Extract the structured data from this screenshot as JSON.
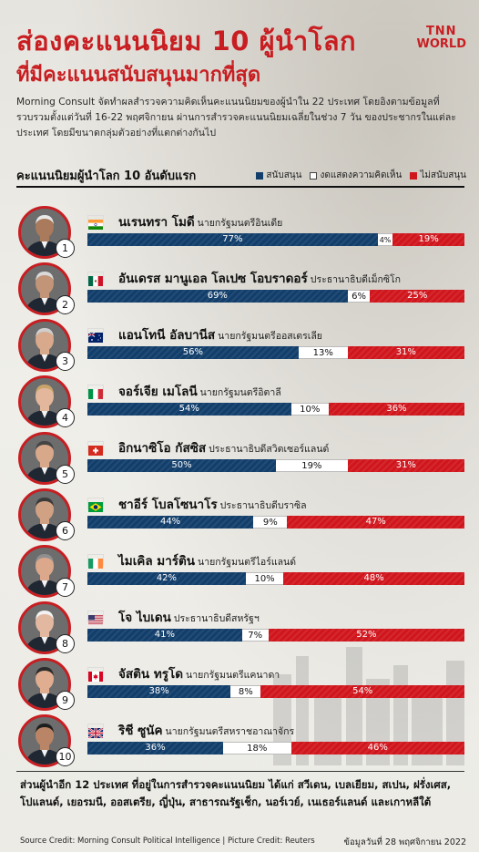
{
  "header": {
    "title_line1": "ส่องคะแนนนิยม 10 ผู้นำโลก",
    "title_line2": "ที่มีคะแนนสนับสนุนมากที่สุด",
    "logo_line1": "TNN",
    "logo_line2": "WORLD",
    "intro": "Morning Consult จัดทำผลสำรวจความคิดเห็นคะแนนนิยมของผู้นำใน 22 ประเทศ โดยอิงตามข้อมูลที่รวบรวมตั้งแต่วันที่ 16-22 พฤศจิกายน ผ่านการสำรวจคะแนนนิยมเฉลี่ยในช่วง 7 วัน ของประชากรในแต่ละประเทศ โดยมีขนาดกลุ่มตัวอย่างที่แตกต่างกันไป"
  },
  "chart_data": {
    "type": "bar",
    "orientation": "horizontal-stacked",
    "title": "คะแนนนิยมผู้นำโลก 10 อันดับแรก",
    "unit": "%",
    "legend_position": "top-right",
    "series": [
      {
        "name": "สนับสนุน",
        "color": "#123e6b",
        "values": [
          77,
          69,
          56,
          54,
          50,
          44,
          42,
          41,
          38,
          36
        ]
      },
      {
        "name": "งดแสดงความคิดเห็น",
        "color": "#ffffff",
        "values": [
          4,
          6,
          13,
          10,
          19,
          9,
          10,
          7,
          8,
          18
        ]
      },
      {
        "name": "ไม่สนับสนุน",
        "color": "#d0161d",
        "values": [
          19,
          25,
          31,
          36,
          31,
          47,
          48,
          52,
          54,
          46
        ]
      }
    ],
    "categories": [
      "นเรนทรา โมดี",
      "อันเดรส มานูเอล โลเปซ โอบราดอร์",
      "แอนโทนี อัลบานีส",
      "จอร์เจีย เมโลนี",
      "อิกนาซิโอ กัสซิส",
      "ชาอีร์ โบลโซนาโร",
      "ไมเคิล มาร์ติน",
      "โจ ไบเดน",
      "จัสติน ทรูโด",
      "ริชี ซูนัค"
    ]
  },
  "leaders": [
    {
      "rank": "1",
      "name": "นเรนทรา โมดี",
      "role": "นายกรัฐมนตรีอินเดีย",
      "flag": "india",
      "skin": "#a97a5c",
      "hair": "#e8e8e8"
    },
    {
      "rank": "2",
      "name": "อันเดรส มานูเอล โลเปซ โอบราดอร์",
      "role": "ประธานาธิบดีเม็กซิโก",
      "flag": "mexico",
      "skin": "#c29478",
      "hair": "#d9d9d9"
    },
    {
      "rank": "3",
      "name": "แอนโทนี อัลบานีส",
      "role": "นายกรัฐมนตรีออสเตรเลีย",
      "flag": "australia",
      "skin": "#d9a98c",
      "hair": "#cfcfcf"
    },
    {
      "rank": "4",
      "name": "จอร์เจีย เมโลนี",
      "role": "นายกรัฐมนตรีอิตาลี",
      "flag": "italy",
      "skin": "#e2b79c",
      "hair": "#c9a46a"
    },
    {
      "rank": "5",
      "name": "อิกนาซิโอ กัสซิส",
      "role": "ประธานาธิบดีสวิตเซอร์แลนด์",
      "flag": "switzerland",
      "skin": "#d8a88a",
      "hair": "#444444"
    },
    {
      "rank": "6",
      "name": "ชาอีร์ โบลโซนาโร",
      "role": "ประธานาธิบดีบราซิล",
      "flag": "brazil",
      "skin": "#d1a184",
      "hair": "#3a3a3a"
    },
    {
      "rank": "7",
      "name": "ไมเคิล มาร์ติน",
      "role": "นายกรัฐมนตรีไอร์แลนด์",
      "flag": "ireland",
      "skin": "#dba88c",
      "hair": "#8f8f8f"
    },
    {
      "rank": "8",
      "name": "โจ ไบเดน",
      "role": "ประธานาธิบดีสหรัฐฯ",
      "flag": "usa",
      "skin": "#e3b8a0",
      "hair": "#f2f2f2"
    },
    {
      "rank": "9",
      "name": "จัสติน ทรูโด",
      "role": "นายกรัฐมนตรีแคนาดา",
      "flag": "canada",
      "skin": "#e0ad90",
      "hair": "#2b2b2b"
    },
    {
      "rank": "10",
      "name": "ริชี ซูนัค",
      "role": "นายกรัฐมนตรีสหราชอาณาจักร",
      "flag": "uk",
      "skin": "#b98566",
      "hair": "#1e1e1e"
    }
  ],
  "footer": {
    "note": "ส่วนผู้นำอีก 12 ประเทศ ที่อยู่ในการสำรวจคะแนนนิยม ได้แก่ สวีเดน, เบลเยียม, สเปน, ฝรั่งเศส, โปแลนด์, เยอรมนี, ออสเตรีย, ญี่ปุ่น, สาธารณรัฐเช็ก, นอร์เวย์, เนเธอร์แลนด์ และเกาหลีใต้",
    "source": "Source Credit: Morning Consult Political Intelligence  | Picture Credit: Reuters",
    "updated": "ข้อมูลวันที่ 28 พฤศจิกายน 2022"
  }
}
